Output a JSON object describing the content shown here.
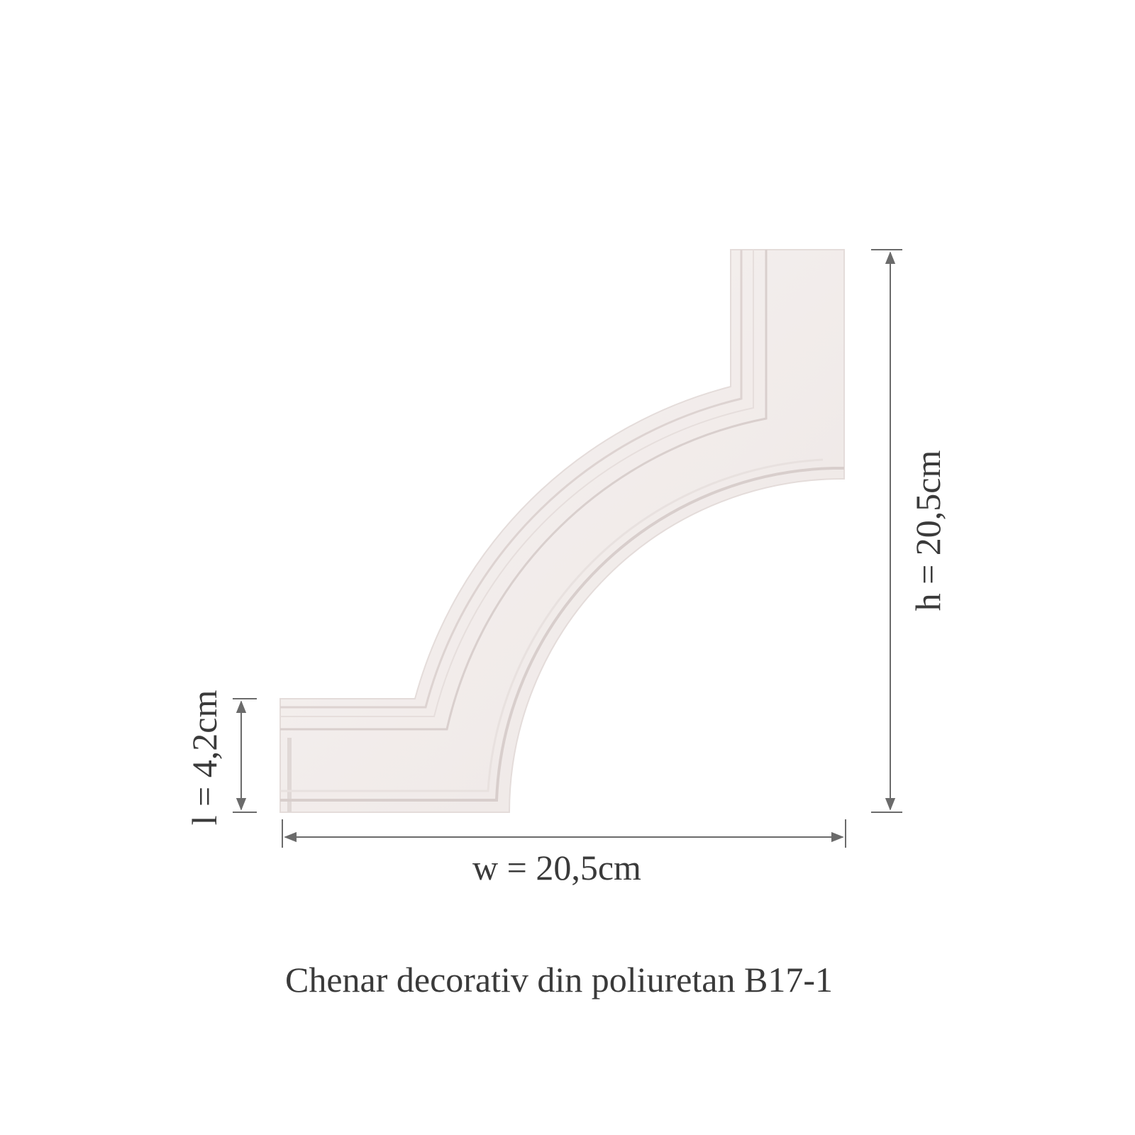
{
  "product": {
    "caption": "Chenar decorativ din poliuretan B17-1",
    "material_color": "#f3eeec"
  },
  "dimensions": {
    "width_label": "w = 20,5cm",
    "height_label": "h = 20,5cm",
    "profile_label": "l = 4,2cm",
    "arrow_color": "#6b6b6b"
  }
}
